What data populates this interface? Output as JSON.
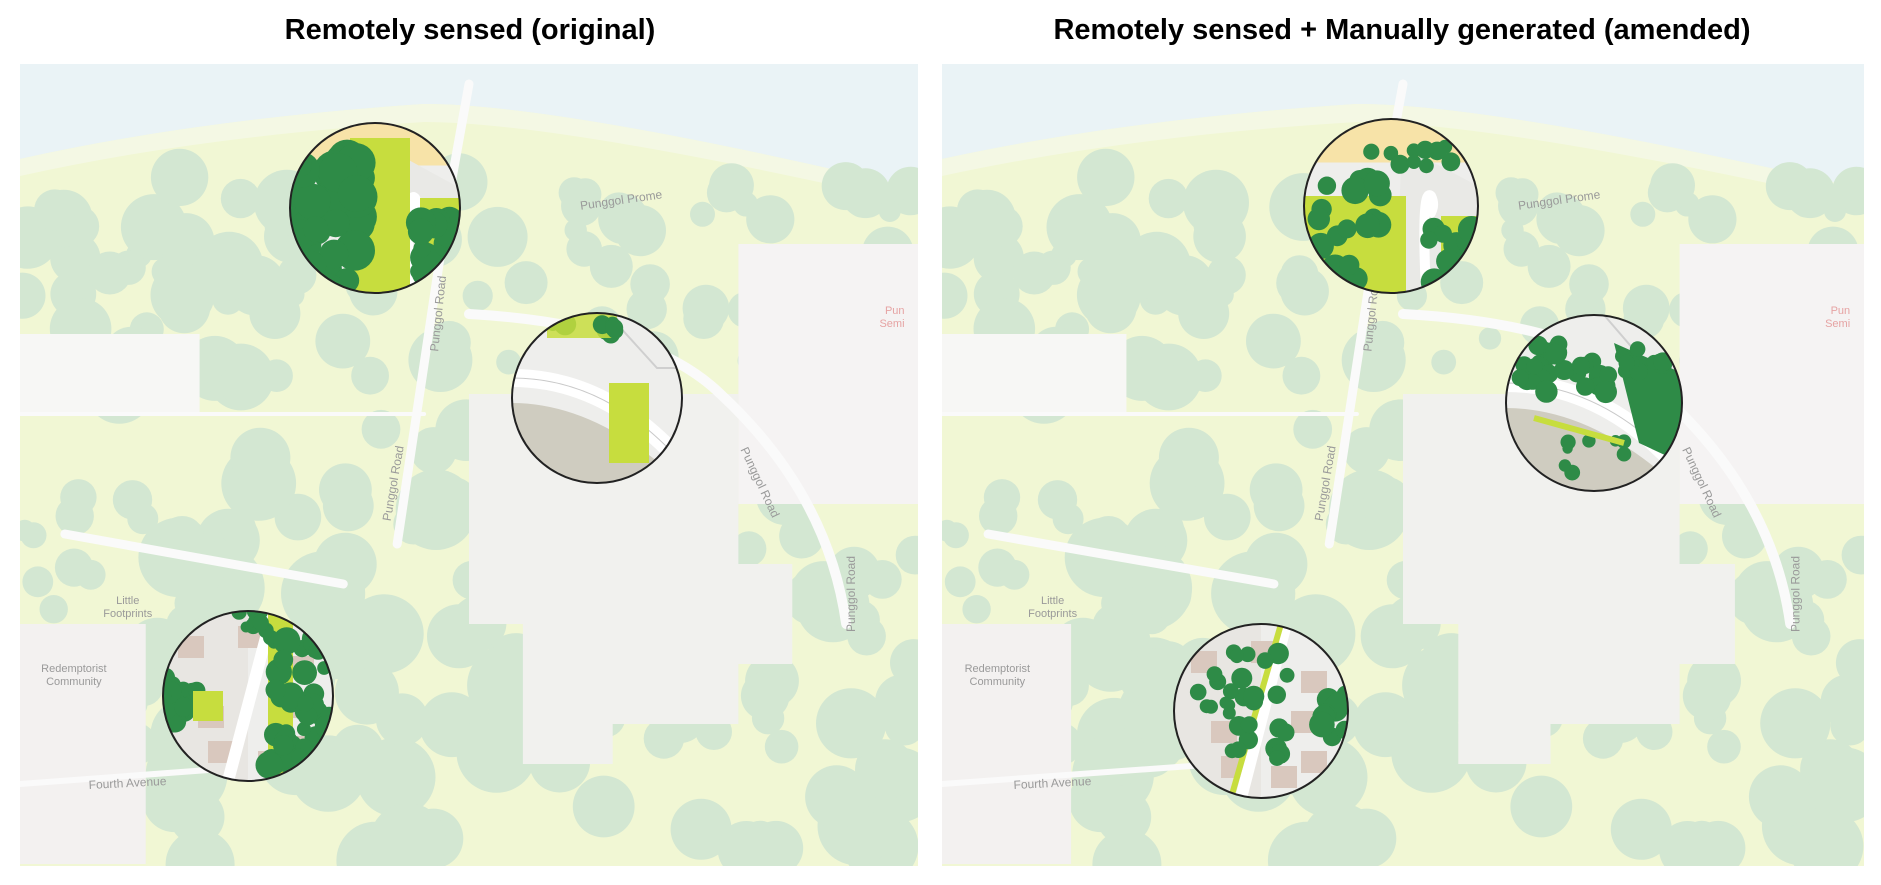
{
  "panels": [
    {
      "title": "Remotely sensed (original)",
      "variant": "original",
      "map_labels": {
        "road_north": "Punggol Road",
        "road_south": "Punggol Road",
        "road_east": "Punggol Road",
        "road_lower_right": "Punggol Road",
        "promenade": "Punggol Prome",
        "avenue": "Fourth Avenue",
        "place_little": "Little",
        "place_footprints": "Footprints",
        "place_redemption": "Redemptorist",
        "place_community": "Community",
        "side_label": "Pun\nSemi"
      }
    },
    {
      "title": "Remotely sensed + Manually generated (amended)",
      "variant": "amended",
      "map_labels": {
        "road_north": "Punggol Road",
        "road_south": "Punggol Road",
        "road_east": "Punggol Road",
        "road_lower_right": "Punggol Road",
        "promenade": "Punggol Prome",
        "avenue": "Fourth Avenue",
        "place_little": "Little",
        "place_footprints": "Footprints",
        "place_redemption": "Redemptorist",
        "place_community": "Community",
        "side_label": "Pun\nSemi"
      }
    }
  ],
  "colors": {
    "sea": "#eaf3f6",
    "land_light": "#f1f7d4",
    "land_pale": "#f4f8e4",
    "forest_pale": "#d3e7d2",
    "urban": "#f1f1ee",
    "road": "#fafafa",
    "tree_dark": "#2e8b47",
    "grass_lime": "#c7dd3e",
    "sand": "#f7e3a8",
    "paved": "#cfccc0",
    "building": "#d9c8be",
    "circle_border": "#222222"
  }
}
